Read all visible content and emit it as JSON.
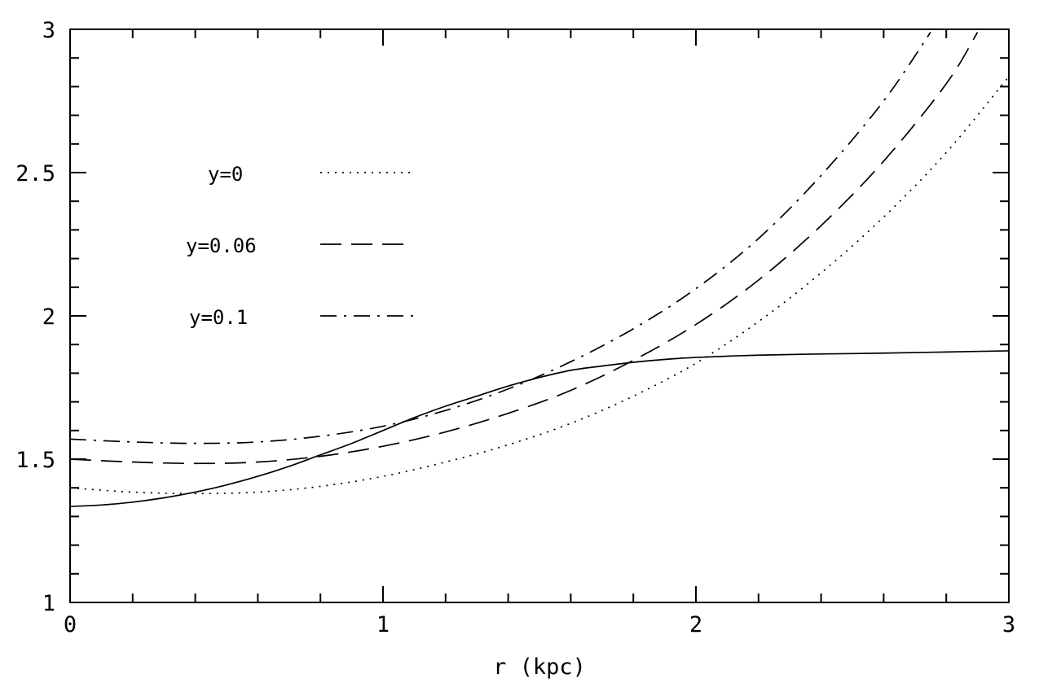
{
  "chart_data": {
    "type": "line",
    "title": "",
    "xlabel": "r (kpc)",
    "ylabel": "",
    "xlim": [
      0,
      3
    ],
    "ylim": [
      1,
      3
    ],
    "xticks": [
      0,
      1,
      2,
      3
    ],
    "xtick_labels": [
      "0",
      "1",
      "2",
      "3"
    ],
    "yticks": [
      1,
      1.5,
      2,
      2.5,
      3
    ],
    "ytick_labels": [
      "1",
      "1.5",
      "2",
      "2.5",
      "3"
    ],
    "grid": false,
    "legend_position": "upper-left",
    "series": [
      {
        "id": "solid",
        "style": "solid",
        "x": [
          0,
          0.1,
          0.2,
          0.3,
          0.4,
          0.5,
          0.6,
          0.7,
          0.8,
          0.9,
          1.0,
          1.1,
          1.2,
          1.3,
          1.4,
          1.5,
          1.6,
          1.7,
          1.8,
          1.9,
          2.0,
          2.2,
          2.4,
          2.6,
          2.8,
          3.0
        ],
        "y": [
          1.335,
          1.34,
          1.35,
          1.365,
          1.385,
          1.41,
          1.44,
          1.475,
          1.515,
          1.555,
          1.6,
          1.645,
          1.685,
          1.72,
          1.755,
          1.785,
          1.81,
          1.825,
          1.838,
          1.848,
          1.855,
          1.863,
          1.867,
          1.87,
          1.874,
          1.878
        ]
      },
      {
        "name": "y=0",
        "style": "dotted",
        "x": [
          0,
          0.2,
          0.4,
          0.6,
          0.8,
          1.0,
          1.2,
          1.4,
          1.6,
          1.8,
          2.0,
          2.2,
          2.4,
          2.6,
          2.8,
          3.0
        ],
        "y": [
          1.4,
          1.385,
          1.38,
          1.385,
          1.405,
          1.44,
          1.49,
          1.55,
          1.625,
          1.72,
          1.835,
          1.98,
          2.15,
          2.345,
          2.57,
          2.835
        ]
      },
      {
        "name": "y=0.06",
        "style": "dashed",
        "x": [
          0,
          0.2,
          0.4,
          0.6,
          0.8,
          1.0,
          1.2,
          1.4,
          1.6,
          1.8,
          2.0,
          2.2,
          2.4,
          2.6,
          2.8,
          2.9
        ],
        "y": [
          1.5,
          1.49,
          1.485,
          1.49,
          1.51,
          1.545,
          1.595,
          1.66,
          1.74,
          1.845,
          1.97,
          2.125,
          2.315,
          2.54,
          2.81,
          2.99
        ]
      },
      {
        "name": "y=0.1",
        "style": "dashdot",
        "x": [
          0,
          0.2,
          0.4,
          0.6,
          0.8,
          1.0,
          1.2,
          1.4,
          1.6,
          1.8,
          2.0,
          2.2,
          2.4,
          2.6,
          2.75
        ],
        "y": [
          1.57,
          1.56,
          1.555,
          1.56,
          1.58,
          1.615,
          1.67,
          1.745,
          1.84,
          1.955,
          2.095,
          2.27,
          2.49,
          2.75,
          2.99
        ]
      }
    ]
  }
}
